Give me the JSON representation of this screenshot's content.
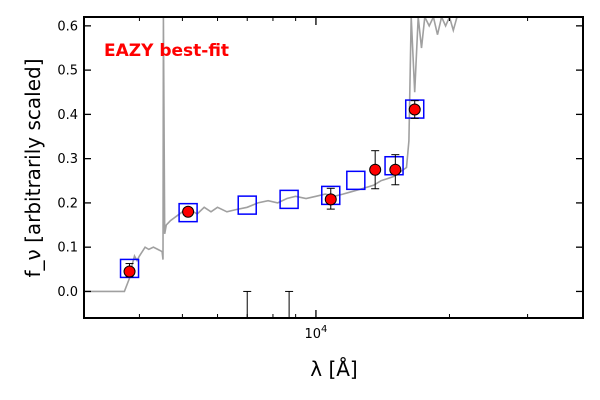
{
  "chart_data": {
    "type": "scatter",
    "title": "",
    "xlabel": "λ [Å]",
    "ylabel": "f_ν [arbitrarily scaled]",
    "xscale": "log",
    "xlim": [
      3000,
      40000
    ],
    "ylim": [
      -0.06,
      0.62
    ],
    "x_tick_labels": [
      {
        "value": 10000,
        "base": "10",
        "exponent": "4"
      }
    ],
    "y_ticks": [
      0.0,
      0.1,
      0.2,
      0.3,
      0.4,
      0.5,
      0.6
    ],
    "y_tick_labels": [
      "0.0",
      "0.1",
      "0.2",
      "0.3",
      "0.4",
      "0.5",
      "0.6"
    ],
    "grid": false,
    "annotation": {
      "text": "EAZY best-fit",
      "color": "#ff0000",
      "placement": "top-left"
    },
    "colors": {
      "template": "#a0a0a0",
      "model_squares": "#0000ff",
      "observed_fill": "#ff0000",
      "observed_edge": "#000000"
    },
    "template_spectrum": {
      "name": "EAZY best-fit",
      "x": [
        3000,
        3400,
        3700,
        3800,
        3850,
        3900,
        3950,
        4000,
        4060,
        4120,
        4200,
        4300,
        4400,
        4500,
        4520,
        4530,
        4560,
        4600,
        4650,
        4700,
        4850,
        5000,
        5200,
        5400,
        5600,
        5800,
        6000,
        6300,
        6600,
        7000,
        7400,
        7800,
        8200,
        8600,
        9000,
        9500,
        10000,
        10500,
        11000,
        11500,
        12000,
        12500,
        13000,
        13500,
        14000,
        14500,
        15000,
        15500,
        16000,
        16200,
        16400,
        16700,
        17000,
        17300,
        17600,
        18000,
        18400,
        18800,
        19200,
        19600,
        20000,
        20400,
        20800
      ],
      "y": [
        0.0,
        0.0,
        0.0,
        0.03,
        0.06,
        0.08,
        0.07,
        0.08,
        0.09,
        0.1,
        0.095,
        0.1,
        0.095,
        0.09,
        0.072,
        0.62,
        0.13,
        0.15,
        0.155,
        0.16,
        0.17,
        0.18,
        0.185,
        0.175,
        0.19,
        0.18,
        0.19,
        0.18,
        0.185,
        0.19,
        0.2,
        0.205,
        0.2,
        0.21,
        0.215,
        0.21,
        0.215,
        0.22,
        0.215,
        0.22,
        0.225,
        0.23,
        0.235,
        0.24,
        0.25,
        0.255,
        0.26,
        0.27,
        0.28,
        0.34,
        0.62,
        0.45,
        0.62,
        0.55,
        0.62,
        0.6,
        0.62,
        0.58,
        0.62,
        0.6,
        0.62,
        0.59,
        0.62
      ]
    },
    "model_photometry": {
      "x": [
        3800,
        5150,
        7000,
        8700,
        10800,
        12300,
        15000,
        16700
      ],
      "y": [
        0.052,
        0.178,
        0.195,
        0.208,
        0.217,
        0.251,
        0.284,
        0.412
      ]
    },
    "observed_photometry": {
      "x": [
        3800,
        5150,
        10800,
        13600,
        15100,
        16700
      ],
      "y": [
        0.045,
        0.18,
        0.208,
        0.275,
        0.275,
        0.411
      ],
      "yerr_low": [
        0.012,
        0.008,
        0.022,
        0.043,
        0.034,
        0.02
      ],
      "yerr_high": [
        0.018,
        0.008,
        0.025,
        0.043,
        0.034,
        0.02
      ]
    },
    "upper_limit_markers": {
      "x": [
        7000,
        8700
      ],
      "y": [
        0.0,
        0.0
      ]
    }
  }
}
